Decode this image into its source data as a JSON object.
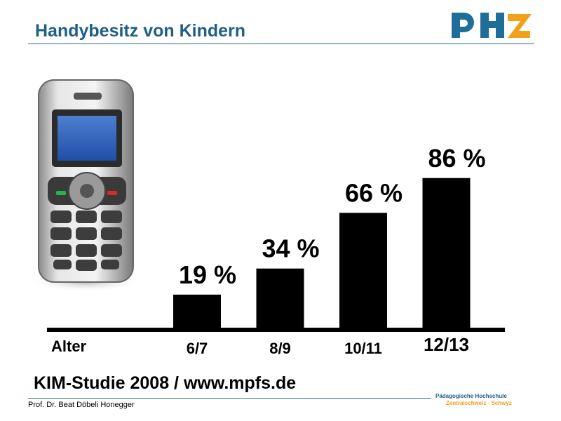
{
  "header": {
    "title": "Handybesitz von Kindern"
  },
  "chart_data": {
    "type": "bar",
    "x_axis_label": "Alter",
    "categories": [
      "6/7",
      "8/9",
      "10/11",
      "12/13"
    ],
    "values": [
      19,
      34,
      66,
      86
    ],
    "data_labels": [
      "19 %",
      "34 %",
      "66 %",
      "86 %"
    ],
    "ylim": [
      0,
      100
    ],
    "bar_color": "#000000",
    "grid": false
  },
  "footer": {
    "source": "KIM-Studie 2008 / www.mpfs.de",
    "author": "Prof. Dr. Beat Döbeli Honegger",
    "institution_line1": "Pädagogische Hochschule",
    "institution_line2": "Zentralschweiz · Schwyz"
  },
  "colors": {
    "accent_blue": "#1f5f86",
    "accent_orange": "#f0a21b"
  },
  "icons": {
    "illustration": "mobile-phone-icon",
    "brand": "phz-logo-icon"
  }
}
